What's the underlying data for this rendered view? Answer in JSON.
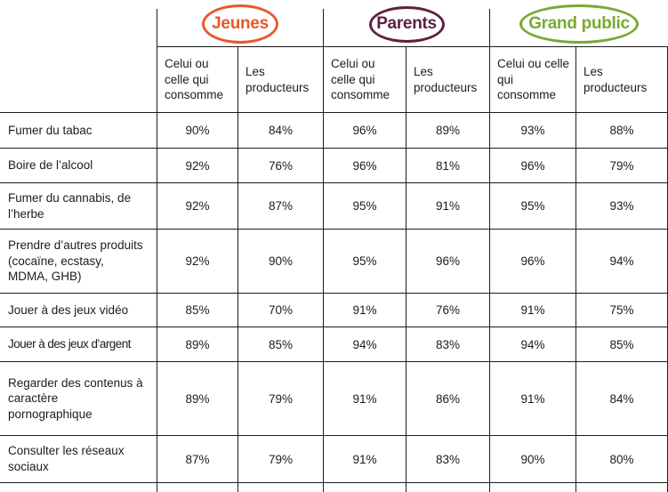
{
  "header": {
    "groups": [
      {
        "label": "Jeunes",
        "color": "#e65a2b"
      },
      {
        "label": "Parents",
        "color": "#5e2142"
      },
      {
        "label": "Grand public",
        "color": "#7aa933"
      }
    ],
    "subcolumns": [
      "Celui ou celle qui consomme",
      "Les producteurs"
    ]
  },
  "rows": [
    {
      "label": "Fumer du tabac",
      "values": [
        "90%",
        "84%",
        "96%",
        "89%",
        "93%",
        "88%"
      ]
    },
    {
      "label": "Boire de l’alcool",
      "values": [
        "92%",
        "76%",
        "96%",
        "81%",
        "96%",
        "79%"
      ]
    },
    {
      "label": "Fumer du cannabis, de l’herbe",
      "values": [
        "92%",
        "87%",
        "95%",
        "91%",
        "95%",
        "93%"
      ]
    },
    {
      "label": "Prendre d’autres produits (cocaïne, ecstasy, MDMA, GHB)",
      "values": [
        "92%",
        "90%",
        "95%",
        "96%",
        "96%",
        "94%"
      ]
    },
    {
      "label": "Jouer à des jeux vidéo",
      "values": [
        "85%",
        "70%",
        "91%",
        "76%",
        "91%",
        "75%"
      ]
    },
    {
      "label": "Jouer à des jeux d’argent",
      "values": [
        "89%",
        "85%",
        "94%",
        "83%",
        "94%",
        "85%"
      ]
    },
    {
      "label": "Regarder des contenus à caractère pornographique",
      "values": [
        "89%",
        "79%",
        "91%",
        "86%",
        "91%",
        "84%"
      ]
    },
    {
      "label": "Consulter les réseaux sociaux",
      "values": [
        "87%",
        "79%",
        "91%",
        "83%",
        "90%",
        "80%"
      ]
    }
  ]
}
